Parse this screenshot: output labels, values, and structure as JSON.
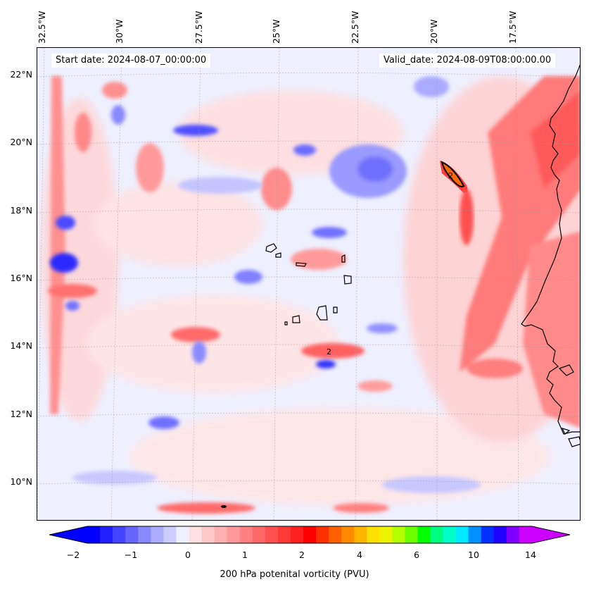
{
  "header": {
    "start_date": "Start date: 2024-08-07_00:00:00",
    "valid_date": "Valid_date: 2024-08-09T08:00:00.00"
  },
  "map": {
    "longitude_labels": [
      "32.5°W",
      "30°W",
      "27.5°W",
      "25°W",
      "22.5°W",
      "20°W",
      "17.5°W"
    ],
    "latitude_labels": [
      "22°N",
      "20°N",
      "18°N",
      "16°N",
      "14°N",
      "12°N",
      "10°N"
    ],
    "contour_label": "2",
    "background_color": "#eef0ff"
  },
  "colorbar": {
    "label": "200 hPa potenital vorticity (PVU)",
    "ticks": [
      "−2",
      "−1",
      "0",
      "1",
      "2",
      "4",
      "6",
      "10",
      "14"
    ],
    "colors": [
      "#0000ff",
      "#2020ff",
      "#4444ff",
      "#6666ff",
      "#8888ff",
      "#aaaaff",
      "#ccccff",
      "#eef0ff",
      "#ffe0e0",
      "#ffc8c8",
      "#ffb0b0",
      "#ff9898",
      "#ff8080",
      "#ff6868",
      "#ff5050",
      "#ff3838",
      "#ff2020",
      "#ff0000",
      "#ff3000",
      "#ff6000",
      "#ff8c00",
      "#ffb400",
      "#ffe000",
      "#eaf400",
      "#b4ff00",
      "#6cff00",
      "#00ff00",
      "#00ff80",
      "#00ffc8",
      "#00e8ff",
      "#0090ff",
      "#0030ff",
      "#2000ff",
      "#8000ff",
      "#cc00ff"
    ],
    "under_color": "#0000ff",
    "over_color": "#cc00ff"
  }
}
